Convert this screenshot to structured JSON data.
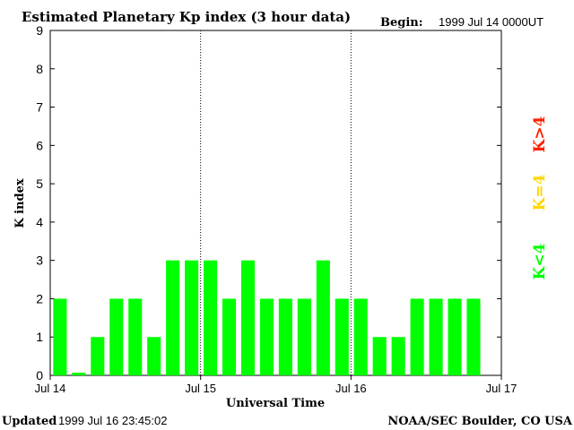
{
  "chart_data": {
    "type": "bar",
    "title": "Estimated Planetary Kp index (3 hour data)",
    "begin_label": "Begin:",
    "begin_value": "1999 Jul 14 0000UT",
    "xlabel": "Universal Time",
    "ylabel": "K index",
    "ylim": [
      0,
      9
    ],
    "yticks": [
      "0",
      "1",
      "2",
      "3",
      "4",
      "5",
      "6",
      "7",
      "8",
      "9"
    ],
    "xticks": [
      "Jul 14",
      "Jul 15",
      "Jul 16",
      "Jul 17"
    ],
    "bar_interval_hours": 3,
    "values": [
      2,
      0.07,
      1,
      2,
      2,
      1,
      3,
      3,
      3,
      2,
      3,
      2,
      2,
      2,
      3,
      2,
      2,
      1,
      1,
      2,
      2,
      2,
      2
    ],
    "legend": [
      {
        "label": "K<4",
        "color": "#00ff00"
      },
      {
        "label": "K=4",
        "color": "#ffd700"
      },
      {
        "label": "K>4",
        "color": "#ff2000"
      }
    ],
    "bar_color": "#00ff00"
  },
  "footer": {
    "updated_label": "Updated",
    "updated_value": "1999 Jul 16 23:45:02",
    "credit": "NOAA/SEC Boulder, CO USA"
  }
}
